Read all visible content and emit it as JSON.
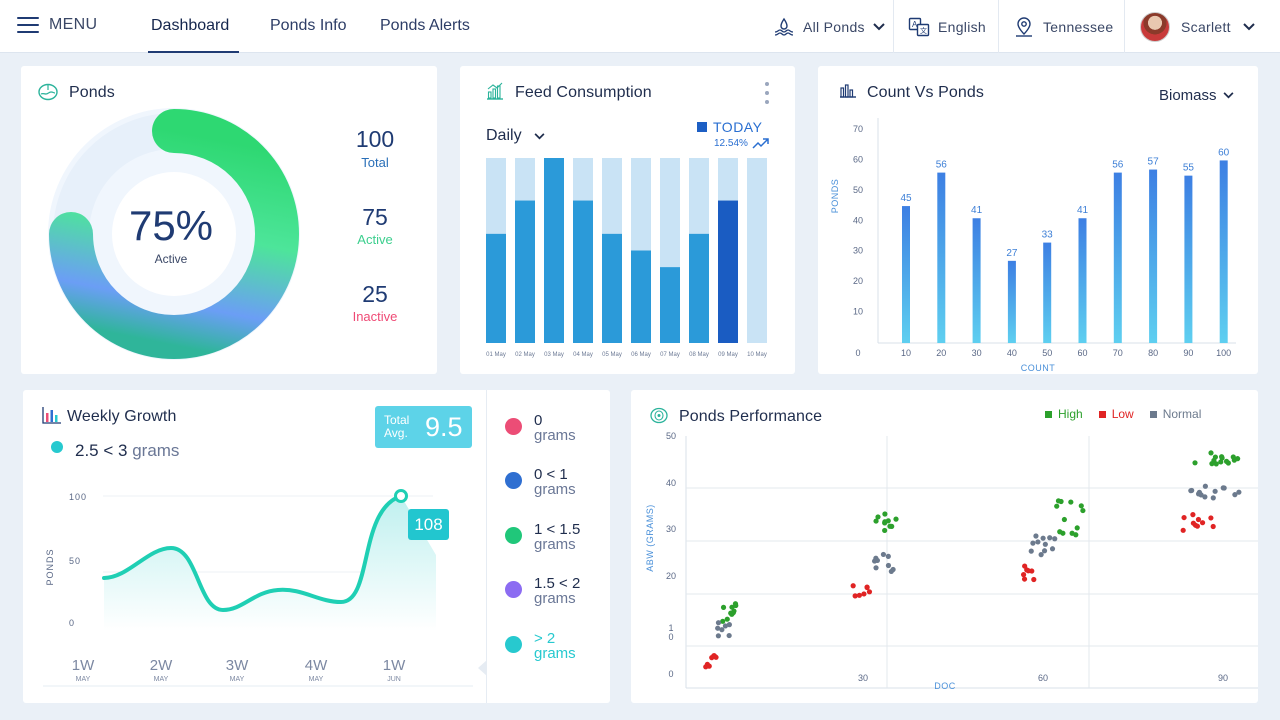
{
  "nav": {
    "menu_label": "MENU",
    "tabs": [
      "Dashboard",
      "Ponds Info",
      "Ponds Alerts"
    ],
    "pond_filter": "All Ponds",
    "language": "English",
    "location": "Tennessee",
    "user": "Scarlett"
  },
  "ponds": {
    "title": "Ponds",
    "percent": "75%",
    "percent_label": "Active",
    "active_fraction": 0.75,
    "stats": [
      {
        "value": "100",
        "label": "Total",
        "color": "#2a6fb8"
      },
      {
        "value": "75",
        "label": "Active",
        "color": "#3ccf8e"
      },
      {
        "value": "25",
        "label": "Inactive",
        "color": "#ef4a75"
      }
    ]
  },
  "feed": {
    "title": "Feed Consumption",
    "period": "Daily",
    "legend_today": "TODAY",
    "change": "12.54%",
    "chart_data": {
      "type": "bar",
      "categories": [
        "01 May",
        "02 May",
        "03 May",
        "04 May",
        "05 May",
        "06 May",
        "07 May",
        "08 May",
        "09 May",
        "10 May"
      ],
      "values": [
        0.59,
        0.77,
        1.0,
        0.77,
        0.59,
        0.5,
        0.41,
        0.59,
        0.77,
        0.0
      ],
      "highlight_index": 8
    }
  },
  "count_vs_ponds": {
    "title": "Count Vs Ponds",
    "selector": "Biomass",
    "chart_data": {
      "type": "bar",
      "categories": [
        "10",
        "20",
        "30",
        "40",
        "50",
        "60",
        "70",
        "80",
        "90",
        "100"
      ],
      "values": [
        45,
        56,
        41,
        27,
        33,
        41,
        56,
        57,
        55,
        60
      ],
      "yticks": [
        "0",
        "10",
        "20",
        "30",
        "40",
        "50",
        "60",
        "70"
      ],
      "ylim": [
        0,
        70
      ],
      "xlabel": "COUNT",
      "ylabel": "PONDS"
    }
  },
  "weekly_growth": {
    "title": "Weekly Growth",
    "selected_range": "2.5 < 3",
    "selected_unit": "grams",
    "total_avg_label_1": "Total",
    "total_avg_label_2": "Avg.",
    "total_avg_value": "9.5",
    "tooltip_value": "108",
    "chart_data": {
      "type": "area",
      "x": [
        "1W",
        "2W",
        "3W",
        "4W",
        "1W"
      ],
      "x_sub": [
        "MAY",
        "MAY",
        "MAY",
        "MAY",
        "JUN"
      ],
      "yticks": [
        "0",
        "50",
        "100"
      ],
      "ylabel": "PONDS",
      "ylim": [
        0,
        120
      ]
    },
    "legend": [
      {
        "range": "0",
        "unit": "grams",
        "color": "#ec4d76",
        "text_color": "#1f2d4d"
      },
      {
        "range": "0 < 1",
        "unit": "grams",
        "color": "#2f6fd1",
        "text_color": "#1f2d4d"
      },
      {
        "range": "1 < 1.5",
        "unit": "grams",
        "color": "#20c77a",
        "text_color": "#1f2d4d"
      },
      {
        "range": "1.5 < 2",
        "unit": "grams",
        "color": "#8c6cf2",
        "text_color": "#1f2d4d"
      },
      {
        "range": "> 2",
        "unit": "grams",
        "color": "#27c9cf",
        "text_color": "#27c9cf"
      }
    ]
  },
  "performance": {
    "title": "Ponds Performance",
    "legend": [
      {
        "name": "High",
        "color": "#2ca02c"
      },
      {
        "name": "Low",
        "color": "#e02424"
      },
      {
        "name": "Normal",
        "color": "#6c7a8d"
      }
    ],
    "chart_data": {
      "type": "scatter",
      "xlabel": "DOC",
      "ylabel": "ABW (GRAMS)",
      "xticks": [
        "30",
        "60",
        "90"
      ],
      "yticks": [
        "0",
        "1\n0",
        "20",
        "30",
        "40",
        "50"
      ]
    }
  }
}
